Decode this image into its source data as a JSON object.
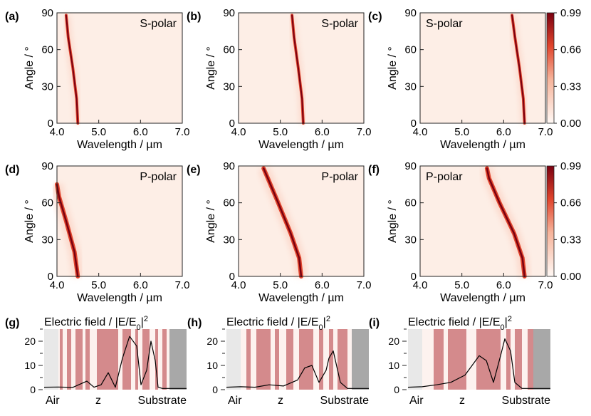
{
  "colors": {
    "dark": "#7a0010",
    "mid": "#e0442c",
    "light": "#fbd9cc",
    "bg": "#fdeee6",
    "layer": "#d48a8c",
    "air": "#e8e8e8",
    "substrate": "#a8a8a8"
  },
  "colorbar": {
    "ticks": [
      "0.99",
      "0.66",
      "0.33",
      "0.00"
    ]
  },
  "chart_data": [
    {
      "type": "heatmap",
      "panel": "(a)",
      "pol": "S-polar",
      "xlabel": "Wavelength / µm",
      "ylabel": "Angle / °",
      "xlim": [
        4.0,
        7.0
      ],
      "ylim": [
        0,
        90
      ],
      "xticks": [
        "4.0",
        "5.0",
        "6.0",
        "7.0"
      ],
      "yticks": [
        "0",
        "30",
        "60",
        "90"
      ],
      "ridge": [
        [
          4.5,
          0
        ],
        [
          4.47,
          20
        ],
        [
          4.38,
          45
        ],
        [
          4.27,
          70
        ],
        [
          4.22,
          88
        ]
      ]
    },
    {
      "type": "heatmap",
      "panel": "(b)",
      "pol": "S-polar",
      "xlabel": "Wavelength / µm",
      "ylabel": "Angle / °",
      "xlim": [
        4.0,
        7.0
      ],
      "ylim": [
        0,
        90
      ],
      "xticks": [
        "4.0",
        "5.0",
        "6.0",
        "7.0"
      ],
      "yticks": [
        "0",
        "30",
        "60",
        "90"
      ],
      "ridge": [
        [
          5.55,
          0
        ],
        [
          5.52,
          20
        ],
        [
          5.43,
          45
        ],
        [
          5.33,
          70
        ],
        [
          5.28,
          88
        ]
      ]
    },
    {
      "type": "heatmap",
      "panel": "(c)",
      "pol": "S-polar",
      "xlabel": "Wavelength / µm",
      "ylabel": "Angle / °",
      "xlim": [
        4.0,
        7.0
      ],
      "ylim": [
        0,
        90
      ],
      "xticks": [
        "4.0",
        "5.0",
        "6.0",
        "7.0"
      ],
      "yticks": [
        "0",
        "30",
        "60",
        "90"
      ],
      "ridge": [
        [
          6.5,
          0
        ],
        [
          6.47,
          20
        ],
        [
          6.38,
          45
        ],
        [
          6.27,
          70
        ],
        [
          6.2,
          88
        ]
      ]
    },
    {
      "type": "heatmap",
      "panel": "(d)",
      "pol": "P-polar",
      "xlabel": "Wavelength / µm",
      "ylabel": "Angle / °",
      "xlim": [
        4.0,
        7.0
      ],
      "ylim": [
        0,
        90
      ],
      "xticks": [
        "4.0",
        "5.0",
        "6.0",
        "7.0"
      ],
      "yticks": [
        "0",
        "30",
        "60",
        "90"
      ],
      "ridge": [
        [
          4.5,
          0
        ],
        [
          4.42,
          20
        ],
        [
          4.22,
          45
        ],
        [
          4.05,
          65
        ],
        [
          4.0,
          75
        ]
      ]
    },
    {
      "type": "heatmap",
      "panel": "(e)",
      "pol": "P-polar",
      "xlabel": "Wavelength / µm",
      "ylabel": "Angle / °",
      "xlim": [
        4.0,
        7.0
      ],
      "ylim": [
        0,
        90
      ],
      "xticks": [
        "4.0",
        "5.0",
        "6.0",
        "7.0"
      ],
      "yticks": [
        "0",
        "30",
        "60",
        "90"
      ],
      "ridge": [
        [
          5.5,
          0
        ],
        [
          5.45,
          15
        ],
        [
          5.25,
          35
        ],
        [
          4.95,
          60
        ],
        [
          4.7,
          80
        ],
        [
          4.6,
          88
        ]
      ]
    },
    {
      "type": "heatmap",
      "panel": "(f)",
      "pol": "P-polar",
      "xlabel": "Wavelength / µm",
      "ylabel": "Angle / °",
      "xlim": [
        4.0,
        7.0
      ],
      "ylim": [
        0,
        90
      ],
      "xticks": [
        "4.0",
        "5.0",
        "6.0",
        "7.0"
      ],
      "yticks": [
        "0",
        "30",
        "60",
        "90"
      ],
      "ridge": [
        [
          6.5,
          0
        ],
        [
          6.45,
          15
        ],
        [
          6.25,
          35
        ],
        [
          5.9,
          60
        ],
        [
          5.65,
          80
        ],
        [
          5.6,
          88
        ]
      ]
    },
    {
      "type": "line",
      "panel": "(g)",
      "title": "Electric field / |E/E",
      "sub": "0",
      "sup": "2",
      "labels": [
        "Air",
        "z",
        "Substrate"
      ],
      "yticks": [
        "0",
        "10",
        "20"
      ],
      "ylim": [
        0,
        25
      ],
      "z": [
        0,
        0.1,
        0.2,
        0.3,
        0.35,
        0.4,
        0.45,
        0.5,
        0.55,
        0.6,
        0.65,
        0.68,
        0.72,
        0.75,
        0.78,
        0.8,
        0.83,
        0.86,
        0.88,
        0.9,
        1.0
      ],
      "E": [
        1,
        1.1,
        0.9,
        3.5,
        1,
        2,
        7,
        1,
        13,
        22,
        18,
        2,
        8,
        20,
        12,
        1,
        0.5,
        0.5,
        0.5,
        0.5,
        0.5
      ]
    },
    {
      "type": "line",
      "panel": "(h)",
      "title": "Electric field / |E/E",
      "sub": "0",
      "sup": "2",
      "labels": [
        "Air",
        "z",
        "Substrate"
      ],
      "yticks": [
        "0",
        "10",
        "20"
      ],
      "ylim": [
        0,
        25
      ],
      "z": [
        0,
        0.1,
        0.2,
        0.3,
        0.4,
        0.5,
        0.55,
        0.6,
        0.65,
        0.7,
        0.72,
        0.75,
        0.8,
        0.85,
        1.0
      ],
      "E": [
        1,
        1.2,
        1,
        2,
        1.5,
        4,
        9,
        10,
        3,
        8,
        13,
        16,
        3,
        0.5,
        0.5
      ]
    },
    {
      "type": "line",
      "panel": "(i)",
      "title": "Electric field / |E/E",
      "sub": "0",
      "sup": "2",
      "labels": [
        "Air",
        "z",
        "Substrate"
      ],
      "yticks": [
        "0",
        "10",
        "20"
      ],
      "ylim": [
        0,
        25
      ],
      "z": [
        0,
        0.1,
        0.2,
        0.3,
        0.4,
        0.5,
        0.55,
        0.6,
        0.65,
        0.68,
        0.72,
        0.75,
        0.8,
        0.85,
        1.0
      ],
      "E": [
        1,
        1.2,
        2,
        3,
        6,
        14,
        12,
        3,
        14,
        21,
        16,
        3,
        0.5,
        0.5,
        0.5
      ]
    }
  ]
}
